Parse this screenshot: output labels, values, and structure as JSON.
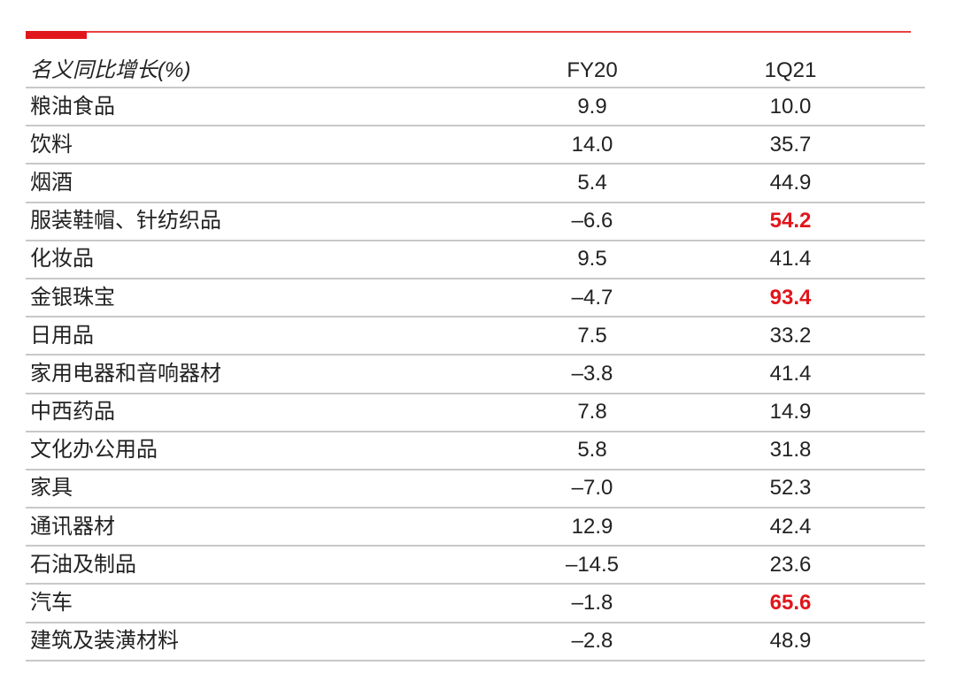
{
  "colors": {
    "accent": "#e0161c",
    "rule": "#c8c8c8",
    "text": "#222222"
  },
  "table": {
    "header": {
      "label": "名义同比增长(%)",
      "col1": "FY20",
      "col2": "1Q21"
    },
    "rows": [
      {
        "name": "粮油食品",
        "fy20": "9.9",
        "q121": "10.0",
        "highlight": false
      },
      {
        "name": "饮料",
        "fy20": "14.0",
        "q121": "35.7",
        "highlight": false
      },
      {
        "name": "烟酒",
        "fy20": "5.4",
        "q121": "44.9",
        "highlight": false
      },
      {
        "name": "服装鞋帽、针纺织品",
        "fy20": "–6.6",
        "q121": "54.2",
        "highlight": true
      },
      {
        "name": "化妆品",
        "fy20": "9.5",
        "q121": "41.4",
        "highlight": false
      },
      {
        "name": "金银珠宝",
        "fy20": "–4.7",
        "q121": "93.4",
        "highlight": true
      },
      {
        "name": "日用品",
        "fy20": "7.5",
        "q121": "33.2",
        "highlight": false
      },
      {
        "name": "家用电器和音响器材",
        "fy20": "–3.8",
        "q121": "41.4",
        "highlight": false
      },
      {
        "name": "中西药品",
        "fy20": "7.8",
        "q121": "14.9",
        "highlight": false
      },
      {
        "name": "文化办公用品",
        "fy20": "5.8",
        "q121": "31.8",
        "highlight": false
      },
      {
        "name": "家具",
        "fy20": "–7.0",
        "q121": "52.3",
        "highlight": false
      },
      {
        "name": "通讯器材",
        "fy20": "12.9",
        "q121": "42.4",
        "highlight": false
      },
      {
        "name": "石油及制品",
        "fy20": "–14.5",
        "q121": "23.6",
        "highlight": false
      },
      {
        "name": "汽车",
        "fy20": "–1.8",
        "q121": "65.6",
        "highlight": true
      },
      {
        "name": "建筑及装潢材料",
        "fy20": "–2.8",
        "q121": "48.9",
        "highlight": false
      }
    ]
  }
}
